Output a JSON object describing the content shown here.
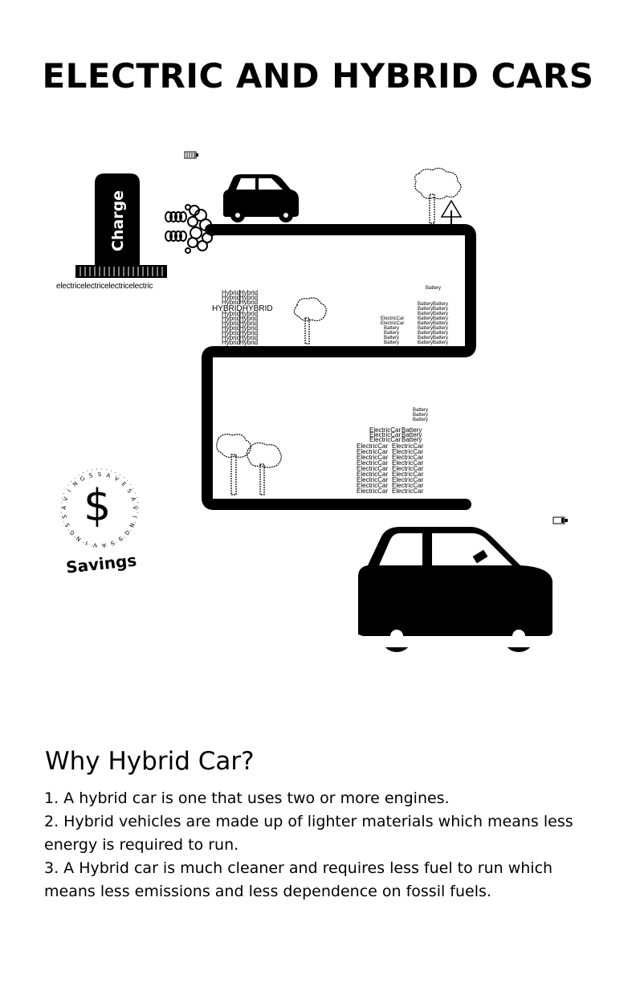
{
  "header": {
    "title": "ELECTRIC AND HYBRID CARS"
  },
  "illustration": {
    "charger_label": "Charge",
    "electric_repeat": "electricelectricelectricelectric",
    "hybrid_word": "Hybrid",
    "hybrid_caps": "HYBRIDHYBRID",
    "battery_word": "Battery",
    "electric_car_word": "ElectricCar",
    "savings_label": "Savings",
    "dollar_sign": "$",
    "savings_ring_text": "SAVESAVINGSSAVINGSSAVINGS",
    "icons": [
      "battery-icon",
      "car-icon",
      "tree-icon",
      "warning-sign-icon",
      "dollar-icon"
    ]
  },
  "content": {
    "heading": "Why Hybrid Car?",
    "reasons": [
      "1. A hybrid car is one that uses two or more engines.",
      "2. Hybrid vehicles are made up of lighter materials which means less energy is required to run.",
      "3. A Hybrid car is much cleaner and requires less fuel to run which means less emissions and less dependence on fossil fuels."
    ]
  }
}
